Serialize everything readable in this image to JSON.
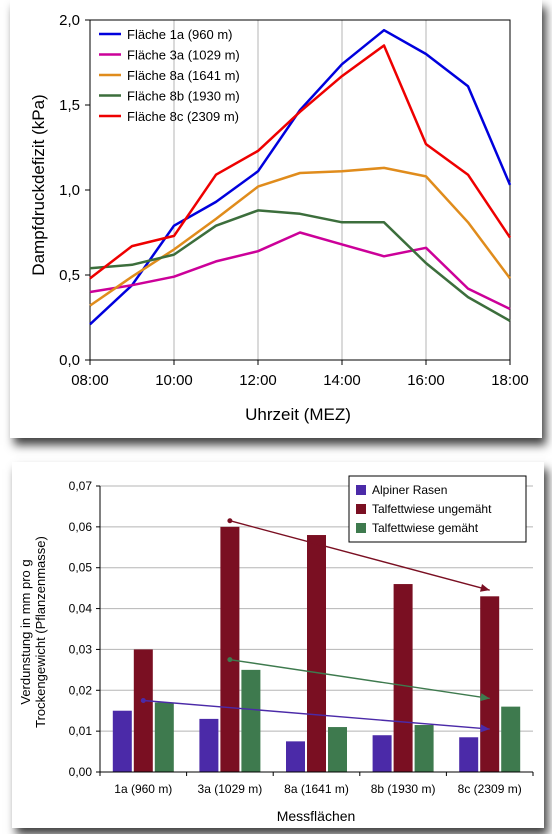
{
  "chart_data": [
    {
      "type": "line",
      "title": "",
      "xlabel": "Uhrzeit (MEZ)",
      "ylabel": "Dampfdruckdefizit (kPa)",
      "x": [
        8,
        9,
        10,
        11,
        12,
        13,
        14,
        15,
        16,
        17,
        18
      ],
      "x_ticks": [
        "08:00",
        "10:00",
        "12:00",
        "14:00",
        "16:00",
        "18:00"
      ],
      "x_tick_values": [
        8,
        10,
        12,
        14,
        16,
        18
      ],
      "xlim": [
        8,
        18
      ],
      "y_ticks": [
        "0,0",
        "0,5",
        "1,0",
        "1,5",
        "2,0"
      ],
      "y_tick_values": [
        0,
        0.5,
        1.0,
        1.5,
        2.0
      ],
      "ylim": [
        0,
        2.0
      ],
      "grid": "vertical",
      "legend_position": "top-left",
      "series": [
        {
          "name": "Fläche 1a (960 m)",
          "color": "#0000dd",
          "values": [
            0.21,
            0.44,
            0.79,
            0.93,
            1.11,
            1.47,
            1.74,
            1.94,
            1.8,
            1.61,
            1.03
          ]
        },
        {
          "name": "Fläche 3a (1029 m)",
          "color": "#cc0099",
          "values": [
            0.4,
            0.44,
            0.49,
            0.58,
            0.64,
            0.75,
            0.68,
            0.61,
            0.66,
            0.42,
            0.3
          ]
        },
        {
          "name": "Fläche 8a (1641 m)",
          "color": "#e08c1c",
          "values": [
            0.32,
            0.49,
            0.65,
            0.83,
            1.02,
            1.1,
            1.11,
            1.13,
            1.08,
            0.81,
            0.48
          ]
        },
        {
          "name": "Fläche 8b (1930 m)",
          "color": "#3c6e3c",
          "values": [
            0.54,
            0.56,
            0.62,
            0.79,
            0.88,
            0.86,
            0.81,
            0.81,
            0.57,
            0.37,
            0.23
          ]
        },
        {
          "name": "Fläche 8c (2309 m)",
          "color": "#ee0000",
          "values": [
            0.48,
            0.67,
            0.73,
            1.09,
            1.23,
            1.46,
            1.67,
            1.85,
            1.27,
            1.09,
            0.72
          ]
        }
      ]
    },
    {
      "type": "bar",
      "title": "",
      "xlabel": "Messflächen",
      "ylabel_lines": [
        "Verdunstung in mm pro g",
        "Trockengewicht (Pflanzenmasse)"
      ],
      "categories": [
        "1a (960 m)",
        "3a (1029 m)",
        "8a (1641 m)",
        "8b (1930 m)",
        "8c (2309 m)"
      ],
      "y_ticks": [
        "0,00",
        "0,01",
        "0,02",
        "0,03",
        "0,04",
        "0,05",
        "0,06",
        "0,07"
      ],
      "y_tick_values": [
        0,
        0.01,
        0.02,
        0.03,
        0.04,
        0.05,
        0.06,
        0.07
      ],
      "ylim": [
        0,
        0.07
      ],
      "grid": "horizontal",
      "legend_position": "top-right",
      "series": [
        {
          "name": "Alpiner Rasen",
          "color": "#4b2aa8",
          "values": [
            0.015,
            0.013,
            0.0075,
            0.009,
            0.0085
          ]
        },
        {
          "name": "Talfettwiese ungemäht",
          "color": "#7a0f22",
          "values": [
            0.03,
            0.06,
            0.058,
            0.046,
            0.043
          ]
        },
        {
          "name": "Talfettwiese gemäht",
          "color": "#3e7a4e",
          "values": [
            0.017,
            0.025,
            0.011,
            0.0115,
            0.016
          ]
        }
      ],
      "trend_arrows": [
        {
          "color": "#4b2aa8",
          "from": {
            "category": 0,
            "value": 0.0175
          },
          "to": {
            "category": 4,
            "value": 0.0105
          }
        },
        {
          "color": "#7a0f22",
          "from": {
            "category": 1,
            "value": 0.0615
          },
          "to": {
            "category": 4,
            "value": 0.0445
          }
        },
        {
          "color": "#3e7a4e",
          "from": {
            "category": 1,
            "value": 0.0275
          },
          "to": {
            "category": 4,
            "value": 0.018
          }
        }
      ]
    }
  ]
}
